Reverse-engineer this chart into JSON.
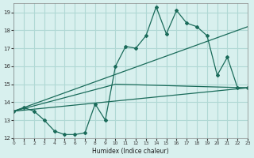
{
  "xlabel": "Humidex (Indice chaleur)",
  "background_color": "#d8f0ee",
  "grid_color": "#b0d8d4",
  "line_color": "#1a6b5a",
  "xlim": [
    0,
    23
  ],
  "ylim": [
    12,
    19.5
  ],
  "xticks": [
    0,
    1,
    2,
    3,
    4,
    5,
    6,
    7,
    8,
    9,
    10,
    11,
    12,
    13,
    14,
    15,
    16,
    17,
    18,
    19,
    20,
    21,
    22,
    23
  ],
  "yticks": [
    12,
    13,
    14,
    15,
    16,
    17,
    18,
    19
  ],
  "line1_x": [
    0,
    1,
    2,
    3,
    4,
    5,
    6,
    7,
    8,
    9,
    10,
    11,
    12,
    13,
    14,
    15,
    16,
    17,
    18,
    19,
    20,
    21,
    22,
    23
  ],
  "line1_y": [
    13.5,
    13.7,
    13.5,
    13.0,
    12.4,
    12.2,
    12.2,
    12.3,
    13.9,
    13.0,
    16.0,
    17.1,
    17.0,
    17.7,
    19.3,
    17.8,
    19.1,
    18.4,
    18.2,
    17.7,
    15.5,
    16.5,
    14.8,
    14.8
  ],
  "line2_x": [
    0,
    23
  ],
  "line2_y": [
    13.5,
    14.8
  ],
  "line3_x": [
    0,
    23
  ],
  "line3_y": [
    13.5,
    18.2
  ],
  "line4_x": [
    0,
    10,
    23
  ],
  "line4_y": [
    13.5,
    15.0,
    14.8
  ]
}
